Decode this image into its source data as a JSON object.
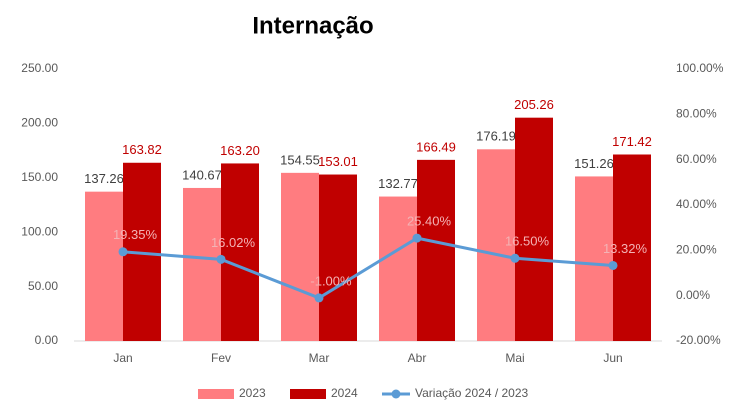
{
  "chart_data": {
    "type": "bar",
    "title": "Internação",
    "categories": [
      "Jan",
      "Fev",
      "Mar",
      "Abr",
      "Mai",
      "Jun"
    ],
    "series": [
      {
        "name": "2023",
        "color": "#ff7c80",
        "label_color": "#404040",
        "values": [
          137.26,
          140.67,
          154.55,
          132.77,
          176.19,
          151.26
        ],
        "value_labels": [
          "137.26",
          "140.67",
          "154.55",
          "132.77",
          "176.19",
          "151.26"
        ]
      },
      {
        "name": "2024",
        "color": "#c00000",
        "label_color": "#c00000",
        "values": [
          163.82,
          163.2,
          153.01,
          166.49,
          205.26,
          171.42
        ],
        "value_labels": [
          "163.82",
          "163.20",
          "153.01",
          "166.49",
          "205.26",
          "171.42"
        ]
      },
      {
        "name": "Variação 2024 / 2023",
        "type": "line",
        "axis": "y2",
        "color": "#5b9bd5",
        "label_color": "#f3b3b5",
        "values": [
          19.35,
          16.02,
          -1,
          25.4,
          16.5,
          13.32
        ],
        "value_labels": [
          "19.35%",
          "16.02%",
          "-1.00%",
          "25.40%",
          "16.50%",
          "13.32%"
        ]
      }
    ],
    "ylim": [
      0,
      250
    ],
    "yticks": [
      {
        "value": 0,
        "label": "0.00"
      },
      {
        "value": 50,
        "label": "50.00"
      },
      {
        "value": 100,
        "label": "100.00"
      },
      {
        "value": 150,
        "label": "150.00"
      },
      {
        "value": 200,
        "label": "200.00"
      },
      {
        "value": 250,
        "label": "250.00"
      }
    ],
    "y2lim": [
      -20,
      100
    ],
    "y2ticks": [
      {
        "value": -20,
        "label": "-20.00%"
      },
      {
        "value": 0,
        "label": "0.00%"
      },
      {
        "value": 20,
        "label": "20.00%"
      },
      {
        "value": 40,
        "label": "40.00%"
      },
      {
        "value": 60,
        "label": "60.00%"
      },
      {
        "value": 80,
        "label": "80.00%"
      },
      {
        "value": 100,
        "label": "100.00%"
      }
    ],
    "legend": "bottom"
  }
}
